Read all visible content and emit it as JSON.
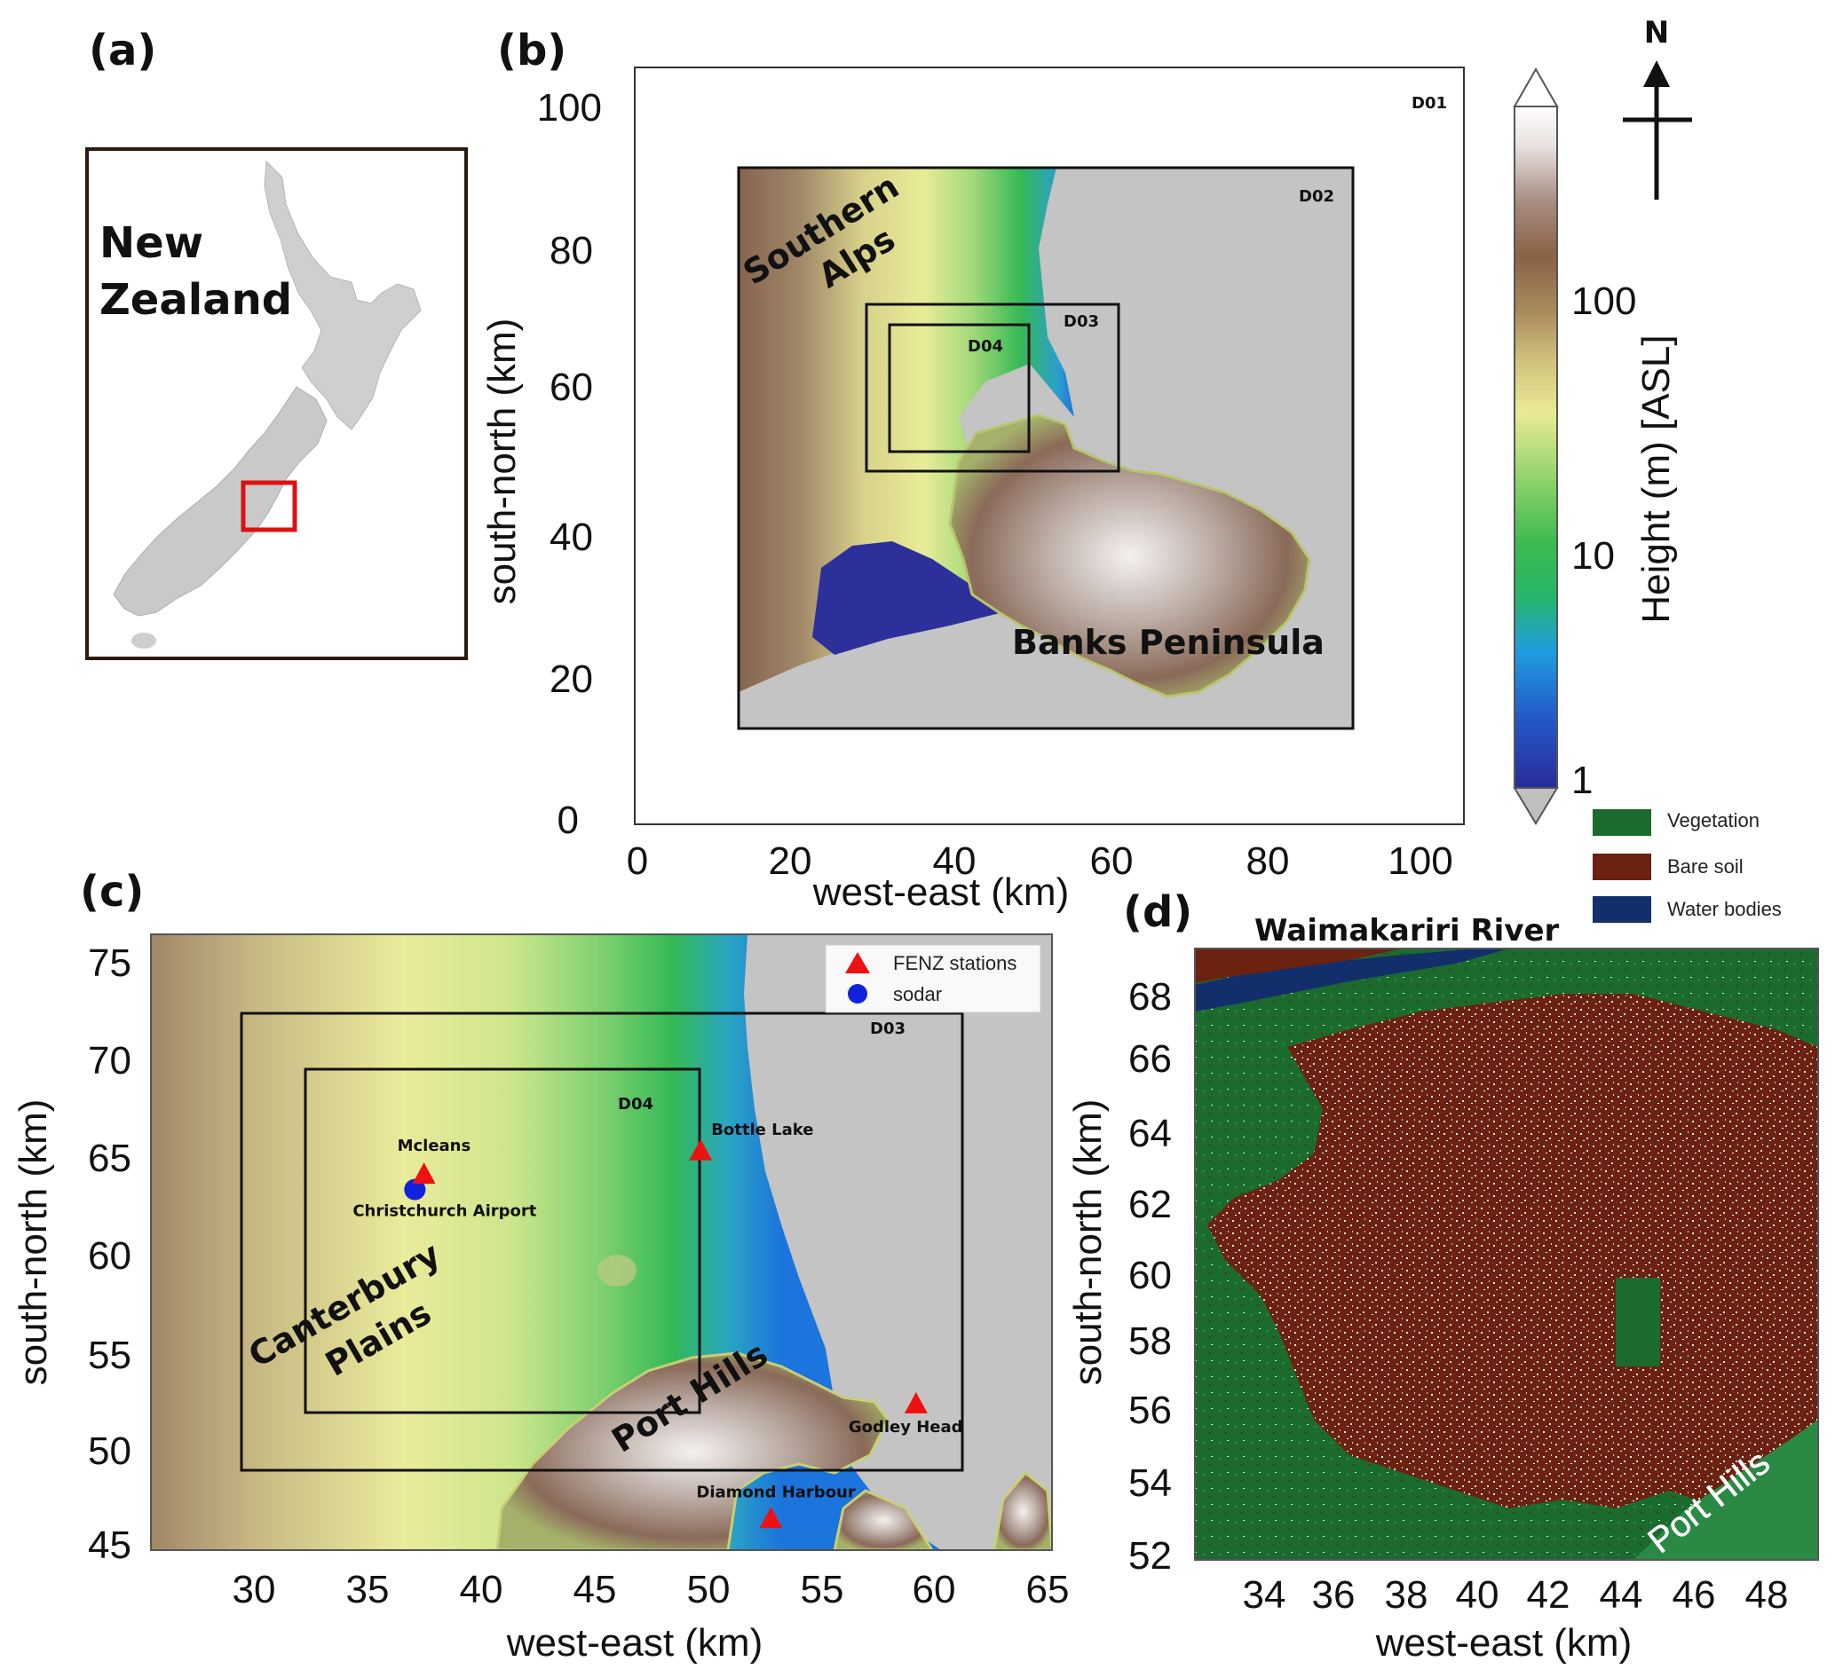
{
  "colors": {
    "sea": "#c4c4c4",
    "vegetation": "#1b6b2e",
    "bare_soil": "#6b2210",
    "water_bodies": "#132f6b",
    "fenz_marker": "#ee1111",
    "sodar_marker": "#1122dd",
    "inset_box": "#dd1111"
  },
  "panel_a": {
    "label": "(a)",
    "country_line1": "New",
    "country_line2": "Zealand"
  },
  "panel_b": {
    "label": "(b)",
    "xlabel": "west-east (km)",
    "ylabel": "south-north (km)",
    "xticks": [
      "0",
      "20",
      "40",
      "60",
      "80",
      "100"
    ],
    "yticks": [
      "0",
      "20",
      "40",
      "60",
      "80",
      "100"
    ],
    "domains": [
      "D01",
      "D02",
      "D03",
      "D04"
    ],
    "region_southern_alps_1": "Southern",
    "region_southern_alps_2": "Alps",
    "region_banks": "Banks Peninsula"
  },
  "colorbar": {
    "label": "Height (m) [ASL]",
    "ticks": [
      "1",
      "10",
      "100"
    ],
    "scale": "log"
  },
  "north_arrow": {
    "label": "N"
  },
  "panel_c": {
    "label": "(c)",
    "xlabel": "west-east (km)",
    "ylabel": "south-north (km)",
    "xticks": [
      "30",
      "35",
      "40",
      "45",
      "50",
      "55",
      "60",
      "65"
    ],
    "yticks": [
      "45",
      "50",
      "55",
      "60",
      "65",
      "70",
      "75"
    ],
    "domains": [
      "D03",
      "D04"
    ],
    "legend": [
      {
        "label": "FENZ stations",
        "icon": "red-triangle-icon"
      },
      {
        "label": "sodar",
        "icon": "blue-circle-icon"
      }
    ],
    "stations": [
      {
        "name": "Mcleans",
        "x_km": 37.5,
        "y_km": 64.1
      },
      {
        "name": "Bottle Lake",
        "x_km": 49.7,
        "y_km": 65.3
      },
      {
        "name": "Godley Head",
        "x_km": 59.2,
        "y_km": 52.3
      },
      {
        "name": "Diamond Harbour",
        "x_km": 52.8,
        "y_km": 46.4
      }
    ],
    "sodar": {
      "name": "Christchurch Airport",
      "x_km": 37.1,
      "y_km": 63.3
    },
    "region_canterbury_1": "Canterbury",
    "region_canterbury_2": "Plains",
    "region_port_hills": "Port Hills"
  },
  "panel_d": {
    "label": "(d)",
    "title": "Waimakariri River",
    "xlabel": "west-east (km)",
    "ylabel": "south-north (km)",
    "xticks": [
      "34",
      "36",
      "38",
      "40",
      "42",
      "44",
      "46",
      "48"
    ],
    "yticks": [
      "52",
      "54",
      "56",
      "58",
      "60",
      "62",
      "64",
      "66",
      "68"
    ],
    "region_port_hills": "Port Hills",
    "legend": [
      {
        "label": "Vegetation",
        "icon": "vegetation-swatch-icon"
      },
      {
        "label": "Bare soil",
        "icon": "bare-soil-swatch-icon"
      },
      {
        "label": "Water bodies",
        "icon": "water-bodies-swatch-icon"
      }
    ]
  }
}
